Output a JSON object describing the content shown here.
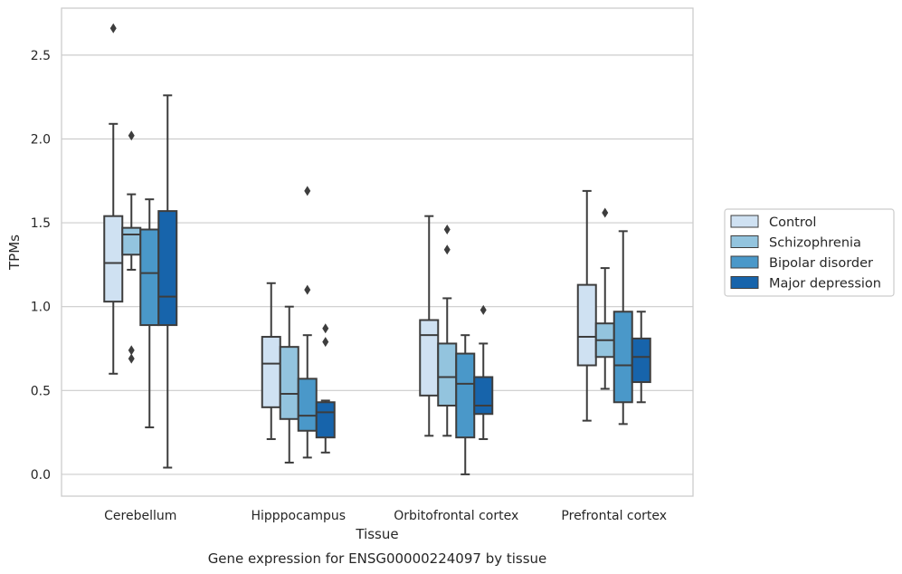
{
  "caption": "Gene expression for ENSG00000224097 by tissue",
  "colors": {
    "Control": "#cfe1f2",
    "Schizophrenia": "#93c4de",
    "Bipolar disorder": "#4a98c9",
    "Major depression": "#1764ab",
    "grid": "#cccccc",
    "frame": "#cccccc",
    "line": "#3d3d3d"
  },
  "chart_data": {
    "type": "box",
    "title": "",
    "xlabel": "Tissue",
    "ylabel": "TPMs",
    "ylim": [
      -0.13,
      2.78
    ],
    "yticks": [
      0.0,
      0.5,
      1.0,
      1.5,
      2.0,
      2.5
    ],
    "ytick_labels": [
      "0.0",
      "0.5",
      "1.0",
      "1.5",
      "2.0",
      "2.5"
    ],
    "grid": "horizontal",
    "legend_position": "right",
    "categories": [
      "Cerebellum",
      "Hipppocampus",
      "Orbitofrontal cortex",
      "Prefrontal cortex"
    ],
    "series": [
      {
        "name": "Control",
        "boxes": [
          {
            "whislo": 0.6,
            "q1": 1.03,
            "med": 1.26,
            "q3": 1.54,
            "whishi": 2.09,
            "fliers": [
              2.66
            ]
          },
          {
            "whislo": 0.21,
            "q1": 0.4,
            "med": 0.66,
            "q3": 0.82,
            "whishi": 1.14,
            "fliers": []
          },
          {
            "whislo": 0.23,
            "q1": 0.47,
            "med": 0.83,
            "q3": 0.92,
            "whishi": 1.54,
            "fliers": []
          },
          {
            "whislo": 0.32,
            "q1": 0.65,
            "med": 0.82,
            "q3": 1.13,
            "whishi": 1.69,
            "fliers": []
          }
        ]
      },
      {
        "name": "Schizophrenia",
        "boxes": [
          {
            "whislo": 1.22,
            "q1": 1.31,
            "med": 1.43,
            "q3": 1.47,
            "whishi": 1.67,
            "fliers": [
              2.02,
              0.74,
              0.69
            ]
          },
          {
            "whislo": 0.07,
            "q1": 0.33,
            "med": 0.48,
            "q3": 0.76,
            "whishi": 1.0,
            "fliers": []
          },
          {
            "whislo": 0.23,
            "q1": 0.41,
            "med": 0.58,
            "q3": 0.78,
            "whishi": 1.05,
            "fliers": [
              1.46,
              1.34
            ]
          },
          {
            "whislo": 0.51,
            "q1": 0.7,
            "med": 0.8,
            "q3": 0.9,
            "whishi": 1.23,
            "fliers": [
              1.56
            ]
          }
        ]
      },
      {
        "name": "Bipolar disorder",
        "boxes": [
          {
            "whislo": 0.28,
            "q1": 0.89,
            "med": 1.2,
            "q3": 1.46,
            "whishi": 1.64,
            "fliers": []
          },
          {
            "whislo": 0.1,
            "q1": 0.26,
            "med": 0.35,
            "q3": 0.57,
            "whishi": 0.83,
            "fliers": [
              1.69,
              1.1
            ]
          },
          {
            "whislo": 0.0,
            "q1": 0.22,
            "med": 0.54,
            "q3": 0.72,
            "whishi": 0.83,
            "fliers": []
          },
          {
            "whislo": 0.3,
            "q1": 0.43,
            "med": 0.65,
            "q3": 0.97,
            "whishi": 1.45,
            "fliers": []
          }
        ]
      },
      {
        "name": "Major depression",
        "boxes": [
          {
            "whislo": 0.04,
            "q1": 0.89,
            "med": 1.06,
            "q3": 1.57,
            "whishi": 2.26,
            "fliers": []
          },
          {
            "whislo": 0.13,
            "q1": 0.22,
            "med": 0.37,
            "q3": 0.43,
            "whishi": 0.44,
            "fliers": [
              0.87,
              0.79
            ]
          },
          {
            "whislo": 0.21,
            "q1": 0.36,
            "med": 0.41,
            "q3": 0.58,
            "whishi": 0.78,
            "fliers": [
              0.98
            ]
          },
          {
            "whislo": 0.43,
            "q1": 0.55,
            "med": 0.7,
            "q3": 0.81,
            "whishi": 0.97,
            "fliers": []
          }
        ]
      }
    ]
  }
}
